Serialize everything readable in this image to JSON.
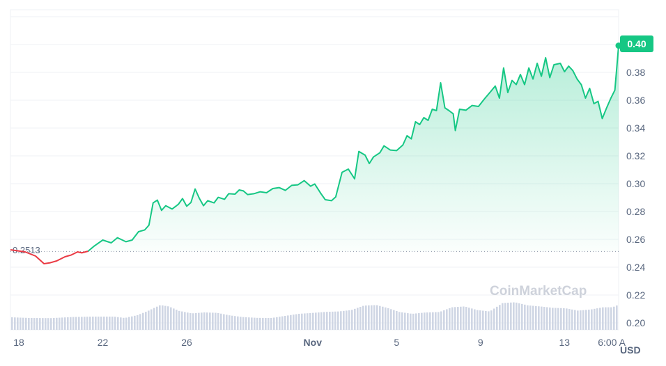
{
  "chart_data": {
    "type": "area",
    "currency": "USD",
    "watermark": "CoinMarketCap",
    "start_price_label": "0.2513",
    "start_price": 0.2513,
    "current_price_label": "0.40",
    "current_price": 0.399,
    "ylim": [
      0.195,
      0.425
    ],
    "y_ticks": [
      0.2,
      0.22,
      0.24,
      0.26,
      0.28,
      0.3,
      0.32,
      0.34,
      0.36,
      0.38
    ],
    "y_tick_labels": [
      "0.20",
      "0.22",
      "0.24",
      "0.26",
      "0.28",
      "0.30",
      "0.32",
      "0.34",
      "0.36",
      "0.38"
    ],
    "x_range_days": [
      17.6,
      46.58
    ],
    "x_ticks": [
      {
        "label": "18",
        "day": 18,
        "bold": false
      },
      {
        "label": "22",
        "day": 22,
        "bold": false
      },
      {
        "label": "26",
        "day": 26,
        "bold": false
      },
      {
        "label": "Nov",
        "day": 32,
        "bold": true
      },
      {
        "label": "5",
        "day": 36,
        "bold": false
      },
      {
        "label": "9",
        "day": 40,
        "bold": false
      },
      {
        "label": "13",
        "day": 44,
        "bold": false
      },
      {
        "label": "6:00 A",
        "day": 46.25,
        "bold": false
      }
    ],
    "colors": {
      "up": "#16c784",
      "down": "#ea3943",
      "volume": "#cfd6e4",
      "grid": "#eff2f5",
      "tag_bg": "#16c784"
    },
    "grid": true,
    "price_series": [
      [
        17.6,
        0.2525
      ],
      [
        18.3,
        0.251
      ],
      [
        18.8,
        0.248
      ],
      [
        19.2,
        0.2425
      ],
      [
        19.5,
        0.2432
      ],
      [
        19.8,
        0.2445
      ],
      [
        20.2,
        0.2475
      ],
      [
        20.5,
        0.2488
      ],
      [
        20.8,
        0.251
      ],
      [
        21.0,
        0.2503
      ],
      [
        21.3,
        0.2515
      ],
      [
        21.6,
        0.2553
      ],
      [
        22.0,
        0.2595
      ],
      [
        22.4,
        0.2575
      ],
      [
        22.7,
        0.2612
      ],
      [
        23.1,
        0.2583
      ],
      [
        23.4,
        0.2595
      ],
      [
        23.7,
        0.2655
      ],
      [
        24.0,
        0.2668
      ],
      [
        24.2,
        0.2702
      ],
      [
        24.4,
        0.2862
      ],
      [
        24.6,
        0.2882
      ],
      [
        24.8,
        0.2808
      ],
      [
        25.0,
        0.2842
      ],
      [
        25.3,
        0.2818
      ],
      [
        25.6,
        0.2852
      ],
      [
        25.8,
        0.2893
      ],
      [
        26.0,
        0.2838
      ],
      [
        26.2,
        0.2865
      ],
      [
        26.4,
        0.2962
      ],
      [
        26.6,
        0.2895
      ],
      [
        26.8,
        0.2842
      ],
      [
        27.0,
        0.2878
      ],
      [
        27.3,
        0.2862
      ],
      [
        27.5,
        0.2902
      ],
      [
        27.8,
        0.2888
      ],
      [
        28.0,
        0.2928
      ],
      [
        28.3,
        0.2925
      ],
      [
        28.5,
        0.2955
      ],
      [
        28.7,
        0.2948
      ],
      [
        28.9,
        0.2922
      ],
      [
        29.2,
        0.2928
      ],
      [
        29.5,
        0.2942
      ],
      [
        29.8,
        0.2935
      ],
      [
        30.1,
        0.2965
      ],
      [
        30.4,
        0.2972
      ],
      [
        30.7,
        0.2952
      ],
      [
        31.0,
        0.2988
      ],
      [
        31.3,
        0.2992
      ],
      [
        31.6,
        0.3022
      ],
      [
        31.9,
        0.2982
      ],
      [
        32.1,
        0.2998
      ],
      [
        32.4,
        0.2928
      ],
      [
        32.6,
        0.2885
      ],
      [
        32.9,
        0.2878
      ],
      [
        33.1,
        0.2905
      ],
      [
        33.4,
        0.3082
      ],
      [
        33.7,
        0.3105
      ],
      [
        34.0,
        0.3035
      ],
      [
        34.2,
        0.3232
      ],
      [
        34.5,
        0.3205
      ],
      [
        34.7,
        0.3145
      ],
      [
        34.9,
        0.3192
      ],
      [
        35.2,
        0.3222
      ],
      [
        35.4,
        0.3272
      ],
      [
        35.7,
        0.3242
      ],
      [
        36.0,
        0.3238
      ],
      [
        36.3,
        0.3278
      ],
      [
        36.5,
        0.3345
      ],
      [
        36.7,
        0.3322
      ],
      [
        36.9,
        0.3445
      ],
      [
        37.1,
        0.3425
      ],
      [
        37.3,
        0.3475
      ],
      [
        37.5,
        0.3455
      ],
      [
        37.7,
        0.3535
      ],
      [
        37.9,
        0.3525
      ],
      [
        38.1,
        0.3725
      ],
      [
        38.3,
        0.3545
      ],
      [
        38.5,
        0.3525
      ],
      [
        38.7,
        0.3502
      ],
      [
        38.8,
        0.3382
      ],
      [
        39.0,
        0.3535
      ],
      [
        39.3,
        0.3528
      ],
      [
        39.6,
        0.3562
      ],
      [
        39.9,
        0.3555
      ],
      [
        40.2,
        0.3612
      ],
      [
        40.5,
        0.3665
      ],
      [
        40.7,
        0.3702
      ],
      [
        40.9,
        0.3615
      ],
      [
        41.1,
        0.3832
      ],
      [
        41.3,
        0.3655
      ],
      [
        41.5,
        0.3742
      ],
      [
        41.7,
        0.3712
      ],
      [
        41.9,
        0.3785
      ],
      [
        42.1,
        0.3712
      ],
      [
        42.3,
        0.3832
      ],
      [
        42.5,
        0.3752
      ],
      [
        42.7,
        0.3865
      ],
      [
        42.9,
        0.3772
      ],
      [
        43.1,
        0.3905
      ],
      [
        43.3,
        0.3762
      ],
      [
        43.5,
        0.3855
      ],
      [
        43.8,
        0.3865
      ],
      [
        44.0,
        0.3805
      ],
      [
        44.2,
        0.3845
      ],
      [
        44.4,
        0.3812
      ],
      [
        44.6,
        0.3752
      ],
      [
        44.8,
        0.3712
      ],
      [
        45.0,
        0.3615
      ],
      [
        45.2,
        0.3685
      ],
      [
        45.4,
        0.3575
      ],
      [
        45.6,
        0.3592
      ],
      [
        45.8,
        0.3468
      ],
      [
        46.0,
        0.3542
      ],
      [
        46.2,
        0.3612
      ],
      [
        46.4,
        0.3672
      ],
      [
        46.58,
        0.3992
      ]
    ],
    "volume_series": [
      [
        17.6,
        0.204
      ],
      [
        18.5,
        0.2035
      ],
      [
        19.5,
        0.2034
      ],
      [
        20.5,
        0.2042
      ],
      [
        21.5,
        0.2045
      ],
      [
        22.5,
        0.2045
      ],
      [
        23.0,
        0.2035
      ],
      [
        23.6,
        0.2055
      ],
      [
        24.1,
        0.2085
      ],
      [
        24.7,
        0.2128
      ],
      [
        25.1,
        0.2118
      ],
      [
        25.6,
        0.2086
      ],
      [
        26.2,
        0.2068
      ],
      [
        26.8,
        0.2075
      ],
      [
        27.4,
        0.2072
      ],
      [
        28.0,
        0.2054
      ],
      [
        28.6,
        0.2042
      ],
      [
        29.3,
        0.2036
      ],
      [
        30.0,
        0.2035
      ],
      [
        30.6,
        0.2049
      ],
      [
        31.3,
        0.2065
      ],
      [
        32.0,
        0.2072
      ],
      [
        32.6,
        0.2079
      ],
      [
        33.2,
        0.2082
      ],
      [
        33.8,
        0.2092
      ],
      [
        34.4,
        0.2124
      ],
      [
        35.0,
        0.2128
      ],
      [
        35.5,
        0.2108
      ],
      [
        36.1,
        0.2078
      ],
      [
        36.7,
        0.2065
      ],
      [
        37.3,
        0.2074
      ],
      [
        38.0,
        0.2078
      ],
      [
        38.6,
        0.2112
      ],
      [
        39.2,
        0.2118
      ],
      [
        39.8,
        0.2092
      ],
      [
        40.4,
        0.2082
      ],
      [
        41.0,
        0.2142
      ],
      [
        41.6,
        0.2148
      ],
      [
        42.2,
        0.2126
      ],
      [
        42.8,
        0.2118
      ],
      [
        43.4,
        0.2108
      ],
      [
        44.0,
        0.2105
      ],
      [
        44.6,
        0.2088
      ],
      [
        45.2,
        0.2096
      ],
      [
        45.8,
        0.2112
      ],
      [
        46.25,
        0.2112
      ],
      [
        46.45,
        0.2125
      ],
      [
        46.58,
        0.2192
      ]
    ]
  }
}
